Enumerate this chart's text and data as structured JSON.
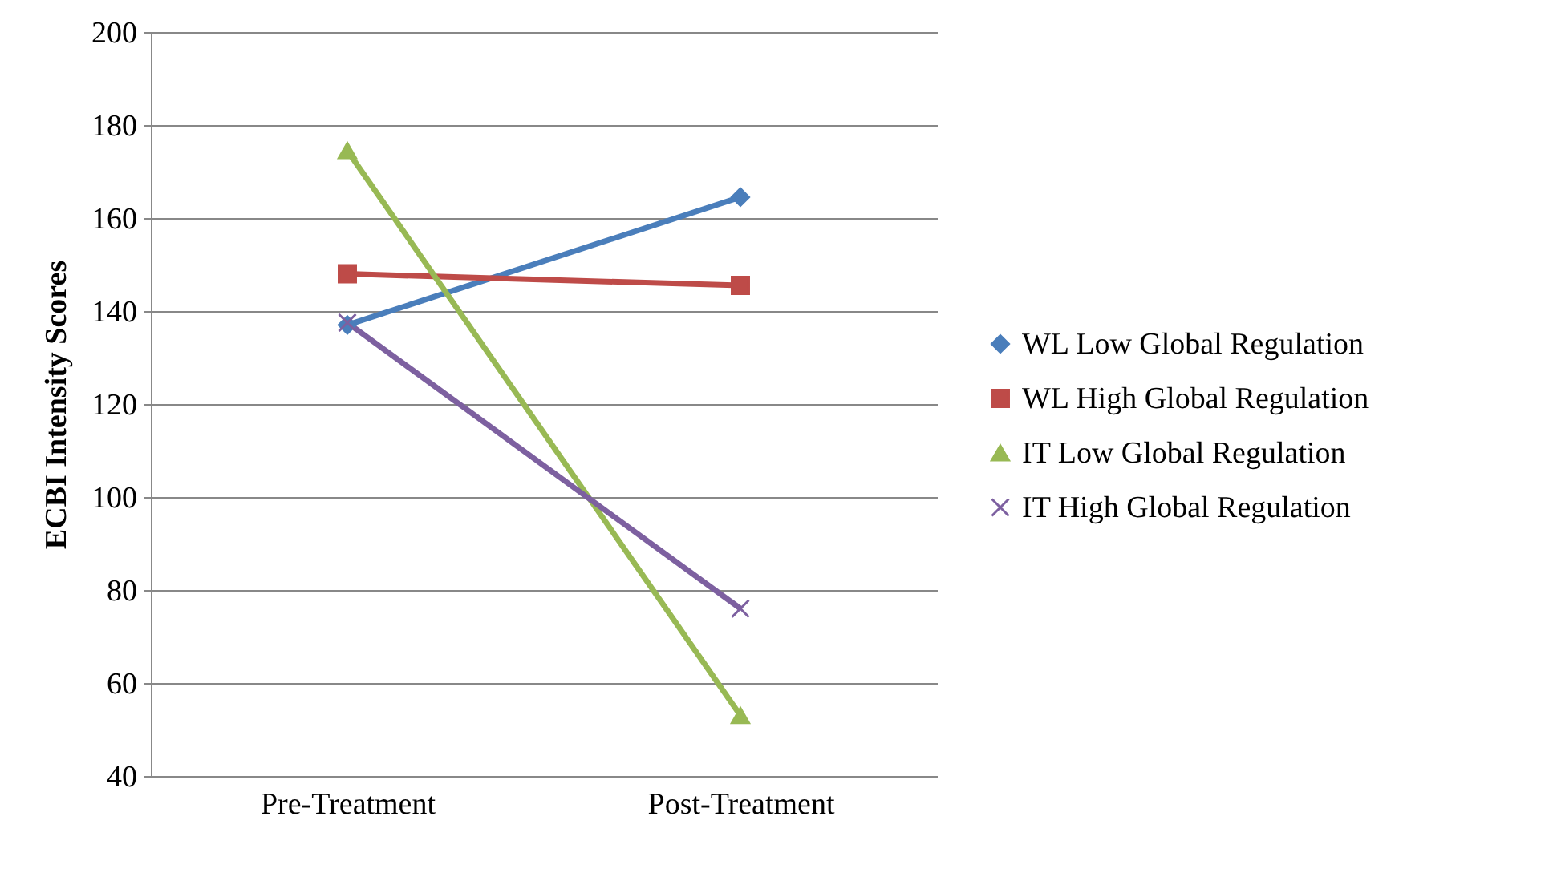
{
  "chart_data": {
    "type": "line",
    "ylabel": "ECBI Intensity Scores",
    "categories": [
      "Pre-Treatment",
      "Post-Treatment"
    ],
    "series": [
      {
        "name": "WL Low Global Regulation",
        "color": "#4a7ebb",
        "marker": "diamond",
        "values": [
          137,
          164.5
        ]
      },
      {
        "name": "WL High Global Regulation",
        "color": "#be4b48",
        "marker": "square",
        "values": [
          148,
          145.5
        ]
      },
      {
        "name": "IT Low Global Regulation",
        "color": "#98b954",
        "marker": "triangle",
        "values": [
          174.5,
          53
        ]
      },
      {
        "name": "IT High Global Regulation",
        "color": "#7d60a0",
        "marker": "cross",
        "values": [
          137.5,
          76
        ]
      }
    ],
    "ylim": [
      40,
      200
    ],
    "yticks": [
      40,
      60,
      80,
      100,
      120,
      140,
      160,
      180,
      200
    ],
    "grid": "y",
    "legend": "right",
    "line_style": "solid"
  }
}
